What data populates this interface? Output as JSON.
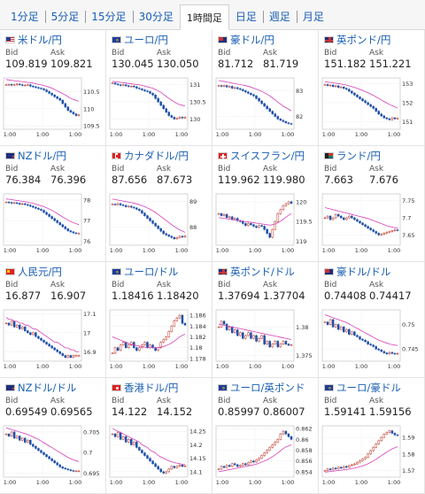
{
  "tabs": [
    "1分足",
    "5分足",
    "15分足",
    "30分足",
    "1時間足",
    "日足",
    "週足",
    "月足"
  ],
  "active_tab": 4,
  "labels": {
    "bid": "Bid",
    "ask": "Ask"
  },
  "pairs": [
    {
      "name": "米ドル/円",
      "flag": "us",
      "bid": "109.819",
      "ask": "109.821",
      "ticks": [
        "110.5",
        "110",
        "109.5"
      ],
      "time": "1:00",
      "closes": [
        110.7,
        110.71,
        110.69,
        110.7,
        110.72,
        110.7,
        110.68,
        110.69,
        110.7,
        110.66,
        110.64,
        110.62,
        110.6,
        110.58,
        110.55,
        110.5,
        110.45,
        110.4,
        110.35,
        110.3,
        110.25,
        110.15,
        110.05,
        109.95,
        109.9,
        109.85,
        109.8,
        109.82
      ],
      "ma": [
        110.85,
        110.84,
        110.83,
        110.82,
        110.81,
        110.8,
        110.79,
        110.78,
        110.77,
        110.76,
        110.75,
        110.73,
        110.71,
        110.7,
        110.68,
        110.65,
        110.63,
        110.6,
        110.56,
        110.52,
        110.48,
        110.44,
        110.4,
        110.35,
        110.3,
        110.27,
        110.24,
        110.22
      ],
      "ylim": [
        109.4,
        110.9
      ]
    },
    {
      "name": "ユーロ/円",
      "flag": "eu",
      "bid": "130.045",
      "ask": "130.050",
      "ticks": [
        "131",
        "130.5",
        "130"
      ],
      "time": "1:00",
      "closes": [
        131.05,
        131.02,
        131.0,
        130.98,
        131.0,
        130.97,
        130.95,
        130.96,
        130.94,
        130.9,
        130.88,
        130.85,
        130.82,
        130.8,
        130.75,
        130.7,
        130.6,
        130.5,
        130.4,
        130.3,
        130.2,
        130.1,
        130.05,
        130.0,
        130.02,
        130.05,
        130.03,
        130.05
      ],
      "ma": [
        131.1,
        131.09,
        131.08,
        131.07,
        131.06,
        131.05,
        131.04,
        131.03,
        131.02,
        131.01,
        131.0,
        130.98,
        130.96,
        130.94,
        130.92,
        130.9,
        130.86,
        130.82,
        130.78,
        130.72,
        130.66,
        130.6,
        130.55,
        130.5,
        130.45,
        130.42,
        130.4,
        130.38
      ],
      "ylim": [
        129.7,
        131.2
      ]
    },
    {
      "name": "豪ドル/円",
      "flag": "au",
      "bid": "81.712",
      "ask": "81.719",
      "ticks": [
        "83",
        "82"
      ],
      "time": "1:00",
      "closes": [
        83.2,
        83.18,
        83.2,
        83.15,
        83.17,
        83.1,
        83.12,
        83.08,
        83.05,
        83.0,
        82.95,
        82.9,
        82.85,
        82.8,
        82.7,
        82.6,
        82.5,
        82.4,
        82.3,
        82.2,
        82.1,
        82.0,
        81.9,
        81.85,
        81.8,
        81.75,
        81.72,
        81.71
      ],
      "ma": [
        83.4,
        83.38,
        83.36,
        83.34,
        83.32,
        83.3,
        83.28,
        83.26,
        83.24,
        83.22,
        83.2,
        83.17,
        83.14,
        83.1,
        83.06,
        83.02,
        82.98,
        82.92,
        82.86,
        82.8,
        82.72,
        82.64,
        82.56,
        82.48,
        82.4,
        82.34,
        82.28,
        82.22
      ],
      "ylim": [
        81.5,
        83.5
      ]
    },
    {
      "name": "英ポンド/円",
      "flag": "gb",
      "bid": "151.182",
      "ask": "151.221",
      "ticks": [
        "153",
        "152",
        "151"
      ],
      "time": "1:00",
      "closes": [
        152.95,
        152.9,
        152.92,
        152.85,
        152.88,
        152.8,
        152.82,
        152.75,
        152.7,
        152.6,
        152.5,
        152.4,
        152.3,
        152.2,
        152.1,
        152.0,
        151.9,
        151.8,
        151.7,
        151.55,
        151.4,
        151.3,
        151.2,
        151.15,
        151.1,
        151.2,
        151.15,
        151.18
      ],
      "ma": [
        153.1,
        153.08,
        153.06,
        153.04,
        153.02,
        153.0,
        152.98,
        152.95,
        152.92,
        152.88,
        152.84,
        152.8,
        152.75,
        152.7,
        152.64,
        152.58,
        152.52,
        152.45,
        152.38,
        152.3,
        152.22,
        152.14,
        152.06,
        151.98,
        151.9,
        151.84,
        151.78,
        151.72
      ],
      "ylim": [
        150.6,
        153.3
      ]
    },
    {
      "name": "NZドル/円",
      "flag": "nz",
      "bid": "76.384",
      "ask": "76.396",
      "ticks": [
        "78",
        "77",
        "76"
      ],
      "time": "1:00",
      "closes": [
        77.9,
        77.88,
        77.85,
        77.87,
        77.84,
        77.8,
        77.82,
        77.78,
        77.75,
        77.7,
        77.65,
        77.6,
        77.55,
        77.5,
        77.4,
        77.3,
        77.2,
        77.1,
        77.0,
        76.9,
        76.8,
        76.7,
        76.6,
        76.5,
        76.45,
        76.4,
        76.38,
        76.38
      ],
      "ma": [
        78.05,
        78.04,
        78.02,
        78.0,
        77.98,
        77.96,
        77.94,
        77.92,
        77.9,
        77.87,
        77.84,
        77.8,
        77.76,
        77.72,
        77.68,
        77.62,
        77.56,
        77.5,
        77.42,
        77.34,
        77.26,
        77.18,
        77.1,
        77.02,
        76.95,
        76.9,
        76.85,
        76.8
      ],
      "ylim": [
        75.8,
        78.3
      ]
    },
    {
      "name": "カナダドル/円",
      "flag": "ca",
      "bid": "87.656",
      "ask": "87.673",
      "ticks": [
        "89",
        "88"
      ],
      "time": "1:00",
      "closes": [
        88.9,
        88.88,
        88.92,
        88.87,
        88.85,
        88.8,
        88.82,
        88.78,
        88.75,
        88.7,
        88.65,
        88.55,
        88.45,
        88.35,
        88.25,
        88.15,
        88.05,
        87.95,
        87.85,
        87.75,
        87.7,
        87.65,
        87.6,
        87.55,
        87.6,
        87.65,
        87.62,
        87.66
      ],
      "ma": [
        89.1,
        89.08,
        89.06,
        89.04,
        89.02,
        89.0,
        88.98,
        88.96,
        88.94,
        88.91,
        88.88,
        88.84,
        88.8,
        88.75,
        88.7,
        88.64,
        88.58,
        88.5,
        88.42,
        88.34,
        88.26,
        88.18,
        88.1,
        88.03,
        87.96,
        87.9,
        87.85,
        87.8
      ],
      "ylim": [
        87.3,
        89.3
      ]
    },
    {
      "name": "スイスフラン/円",
      "flag": "ch",
      "bid": "119.962",
      "ask": "119.980",
      "ticks": [
        "120",
        "119.5",
        "119"
      ],
      "time": "1:00",
      "closes": [
        119.7,
        119.65,
        119.68,
        119.6,
        119.62,
        119.55,
        119.58,
        119.52,
        119.5,
        119.45,
        119.4,
        119.45,
        119.42,
        119.38,
        119.35,
        119.4,
        119.38,
        119.3,
        119.2,
        119.1,
        119.3,
        119.5,
        119.7,
        119.8,
        119.9,
        119.95,
        120.0,
        119.96
      ],
      "ma": [
        119.6,
        119.59,
        119.58,
        119.57,
        119.56,
        119.55,
        119.54,
        119.53,
        119.52,
        119.51,
        119.5,
        119.49,
        119.48,
        119.47,
        119.46,
        119.45,
        119.44,
        119.43,
        119.42,
        119.41,
        119.42,
        119.44,
        119.47,
        119.51,
        119.56,
        119.61,
        119.66,
        119.7
      ],
      "ylim": [
        118.9,
        120.2
      ]
    },
    {
      "name": "ランド/円",
      "flag": "za",
      "bid": "7.663",
      "ask": "7.676",
      "ticks": [
        "7.75",
        "7.7",
        "7.65"
      ],
      "time": "1:00",
      "closes": [
        7.7,
        7.705,
        7.695,
        7.7,
        7.71,
        7.705,
        7.7,
        7.695,
        7.7,
        7.705,
        7.7,
        7.695,
        7.69,
        7.685,
        7.68,
        7.675,
        7.67,
        7.665,
        7.66,
        7.655,
        7.65,
        7.652,
        7.655,
        7.658,
        7.66,
        7.662,
        7.665,
        7.663
      ],
      "ma": [
        7.73,
        7.728,
        7.726,
        7.724,
        7.722,
        7.72,
        7.718,
        7.716,
        7.714,
        7.712,
        7.71,
        7.708,
        7.706,
        7.704,
        7.702,
        7.7,
        7.698,
        7.695,
        7.692,
        7.689,
        7.686,
        7.683,
        7.68,
        7.677,
        7.675,
        7.673,
        7.671,
        7.67
      ],
      "ylim": [
        7.62,
        7.77
      ]
    },
    {
      "name": "人民元/円",
      "flag": "cn",
      "bid": "16.877",
      "ask": "16.907",
      "ticks": [
        "17.1",
        "17",
        "16.9"
      ],
      "time": "1:00",
      "closes": [
        17.05,
        17.04,
        17.06,
        17.03,
        17.04,
        17.02,
        17.03,
        17.01,
        17.0,
        16.99,
        17.0,
        16.98,
        16.97,
        16.96,
        16.95,
        16.94,
        16.93,
        16.92,
        16.91,
        16.9,
        16.89,
        16.88,
        16.87,
        16.88,
        16.87,
        16.88,
        16.88,
        16.88
      ],
      "ma": [
        17.08,
        17.07,
        17.07,
        17.06,
        17.06,
        17.05,
        17.05,
        17.04,
        17.04,
        17.03,
        17.02,
        17.02,
        17.01,
        17.0,
        16.99,
        16.98,
        16.97,
        16.96,
        16.95,
        16.95,
        16.94,
        16.93,
        16.92,
        16.92,
        16.91,
        16.91,
        16.9,
        16.9
      ],
      "ylim": [
        16.85,
        17.12
      ]
    },
    {
      "name": "ユーロ/ドル",
      "flag": "euus",
      "bid": "1.18416",
      "ask": "1.18420",
      "ticks": [
        "1.186",
        "1.184",
        "1.182",
        "1.18",
        "1.178"
      ],
      "time": "1:00",
      "closes": [
        1.179,
        1.18,
        1.1795,
        1.1805,
        1.181,
        1.18,
        1.1805,
        1.181,
        1.18,
        1.1795,
        1.18,
        1.1805,
        1.181,
        1.18,
        1.1805,
        1.18,
        1.1795,
        1.18,
        1.181,
        1.1815,
        1.182,
        1.183,
        1.184,
        1.185,
        1.1855,
        1.186,
        1.1845,
        1.1842
      ],
      "ma": [
        1.182,
        1.1818,
        1.1816,
        1.1814,
        1.1812,
        1.181,
        1.1808,
        1.1806,
        1.1805,
        1.1804,
        1.1803,
        1.1802,
        1.1801,
        1.18,
        1.18,
        1.18,
        1.18,
        1.18,
        1.1801,
        1.1802,
        1.1804,
        1.1806,
        1.1809,
        1.1812,
        1.1816,
        1.182,
        1.1823,
        1.1825
      ],
      "ylim": [
        1.1775,
        1.187
      ]
    },
    {
      "name": "英ポンド/ドル",
      "flag": "gbus",
      "bid": "1.37694",
      "ask": "1.37704",
      "ticks": [
        "1.38",
        "1.375"
      ],
      "time": "1:00",
      "closes": [
        1.38,
        1.381,
        1.3805,
        1.3795,
        1.38,
        1.379,
        1.3795,
        1.3785,
        1.379,
        1.378,
        1.3785,
        1.379,
        1.378,
        1.3785,
        1.3775,
        1.378,
        1.3785,
        1.377,
        1.3775,
        1.3765,
        1.377,
        1.3775,
        1.3765,
        1.377,
        1.3775,
        1.377,
        1.3768,
        1.3769
      ],
      "ma": [
        1.3805,
        1.3804,
        1.3803,
        1.3802,
        1.3801,
        1.38,
        1.3799,
        1.3798,
        1.3797,
        1.3796,
        1.3795,
        1.3794,
        1.3793,
        1.3792,
        1.3791,
        1.379,
        1.3789,
        1.3788,
        1.3787,
        1.3786,
        1.3785,
        1.3784,
        1.3783,
        1.3782,
        1.3781,
        1.378,
        1.3779,
        1.3778
      ],
      "ylim": [
        1.374,
        1.383
      ]
    },
    {
      "name": "豪ドル/ドル",
      "flag": "auus",
      "bid": "0.74408",
      "ask": "0.74417",
      "ticks": [
        "0.75",
        "0.745"
      ],
      "time": "1:00",
      "closes": [
        0.7505,
        0.75,
        0.751,
        0.7495,
        0.75,
        0.749,
        0.7495,
        0.7485,
        0.749,
        0.748,
        0.7485,
        0.7478,
        0.7475,
        0.747,
        0.7468,
        0.7465,
        0.746,
        0.7458,
        0.7455,
        0.745,
        0.7448,
        0.7445,
        0.7442,
        0.744,
        0.7443,
        0.7441,
        0.744,
        0.7441
      ],
      "ma": [
        0.752,
        0.7518,
        0.7516,
        0.7514,
        0.7512,
        0.751,
        0.7508,
        0.7506,
        0.7504,
        0.7501,
        0.7498,
        0.7495,
        0.7492,
        0.7489,
        0.7486,
        0.7483,
        0.748,
        0.7477,
        0.7474,
        0.7471,
        0.7468,
        0.7466,
        0.7464,
        0.7462,
        0.746,
        0.7459,
        0.7458,
        0.7457
      ],
      "ylim": [
        0.7425,
        0.753
      ]
    },
    {
      "name": "NZドル/ドル",
      "flag": "nzus",
      "bid": "0.69549",
      "ask": "0.69565",
      "ticks": [
        "0.705",
        "0.7",
        "0.695"
      ],
      "time": "1:00",
      "closes": [
        0.7045,
        0.704,
        0.705,
        0.7035,
        0.704,
        0.703,
        0.7035,
        0.7025,
        0.703,
        0.702,
        0.7015,
        0.701,
        0.7005,
        0.7,
        0.6995,
        0.699,
        0.6985,
        0.698,
        0.6975,
        0.697,
        0.6965,
        0.6962,
        0.696,
        0.6958,
        0.6956,
        0.6955,
        0.6955,
        0.6955
      ],
      "ma": [
        0.706,
        0.7058,
        0.7056,
        0.7054,
        0.7052,
        0.705,
        0.7048,
        0.7046,
        0.7044,
        0.7041,
        0.7038,
        0.7035,
        0.7032,
        0.7028,
        0.7024,
        0.702,
        0.7016,
        0.7012,
        0.7008,
        0.7004,
        0.7,
        0.6996,
        0.6992,
        0.6988,
        0.6985,
        0.6982,
        0.698,
        0.6978
      ],
      "ylim": [
        0.694,
        0.7065
      ]
    },
    {
      "name": "香港ドル/円",
      "flag": "hk",
      "bid": "14.122",
      "ask": "14.152",
      "ticks": [
        "14.25",
        "14.2",
        "14.15",
        "14.1"
      ],
      "time": "1:00",
      "closes": [
        14.24,
        14.23,
        14.245,
        14.22,
        14.23,
        14.21,
        14.22,
        14.2,
        14.21,
        14.19,
        14.18,
        14.17,
        14.16,
        14.15,
        14.14,
        14.13,
        14.12,
        14.11,
        14.1,
        14.095,
        14.1,
        14.11,
        14.12,
        14.115,
        14.12,
        14.125,
        14.12,
        14.122
      ],
      "ma": [
        14.26,
        14.255,
        14.25,
        14.245,
        14.24,
        14.235,
        14.23,
        14.225,
        14.22,
        14.215,
        14.21,
        14.2,
        14.195,
        14.19,
        14.18,
        14.175,
        14.17,
        14.16,
        14.155,
        14.15,
        14.145,
        14.14,
        14.137,
        14.134,
        14.132,
        14.13,
        14.128,
        14.127
      ],
      "ylim": [
        14.08,
        14.27
      ]
    },
    {
      "name": "ユーロ/英ポンド",
      "flag": "eugb",
      "bid": "0.85997",
      "ask": "0.86007",
      "ticks": [
        "0.862",
        "0.86",
        "0.858",
        "0.856",
        "0.854"
      ],
      "time": "1:00",
      "closes": [
        0.8545,
        0.855,
        0.8548,
        0.8552,
        0.855,
        0.8555,
        0.8553,
        0.855,
        0.8552,
        0.8555,
        0.8553,
        0.8557,
        0.856,
        0.8558,
        0.8562,
        0.8565,
        0.857,
        0.8575,
        0.858,
        0.8585,
        0.859,
        0.8595,
        0.86,
        0.861,
        0.8615,
        0.861,
        0.8605,
        0.86
      ],
      "ma": [
        0.854,
        0.8541,
        0.8542,
        0.8543,
        0.8544,
        0.8545,
        0.8546,
        0.8547,
        0.8548,
        0.8549,
        0.855,
        0.8551,
        0.8552,
        0.8553,
        0.8554,
        0.8556,
        0.8558,
        0.856,
        0.8562,
        0.8565,
        0.8568,
        0.8571,
        0.8575,
        0.8579,
        0.8583,
        0.8586,
        0.8588,
        0.859
      ],
      "ylim": [
        0.853,
        0.8625
      ]
    },
    {
      "name": "ユーロ/豪ドル",
      "flag": "euau",
      "bid": "1.59141",
      "ask": "1.59156",
      "ticks": [
        "1.59",
        "1.58",
        "1.57"
      ],
      "time": "1:00",
      "closes": [
        1.57,
        1.571,
        1.5705,
        1.5715,
        1.571,
        1.572,
        1.5715,
        1.5725,
        1.572,
        1.573,
        1.5735,
        1.574,
        1.575,
        1.576,
        1.577,
        1.578,
        1.58,
        1.582,
        1.584,
        1.586,
        1.588,
        1.59,
        1.592,
        1.593,
        1.594,
        1.5925,
        1.5915,
        1.5914
      ],
      "ma": [
        1.569,
        1.5692,
        1.5694,
        1.5696,
        1.5698,
        1.57,
        1.5702,
        1.5704,
        1.5706,
        1.5709,
        1.5712,
        1.5715,
        1.5719,
        1.5723,
        1.5728,
        1.5734,
        1.5741,
        1.5749,
        1.5758,
        1.5768,
        1.5779,
        1.579,
        1.5801,
        1.5812,
        1.5822,
        1.5831,
        1.5838,
        1.5844
      ],
      "ylim": [
        1.566,
        1.597
      ]
    }
  ]
}
